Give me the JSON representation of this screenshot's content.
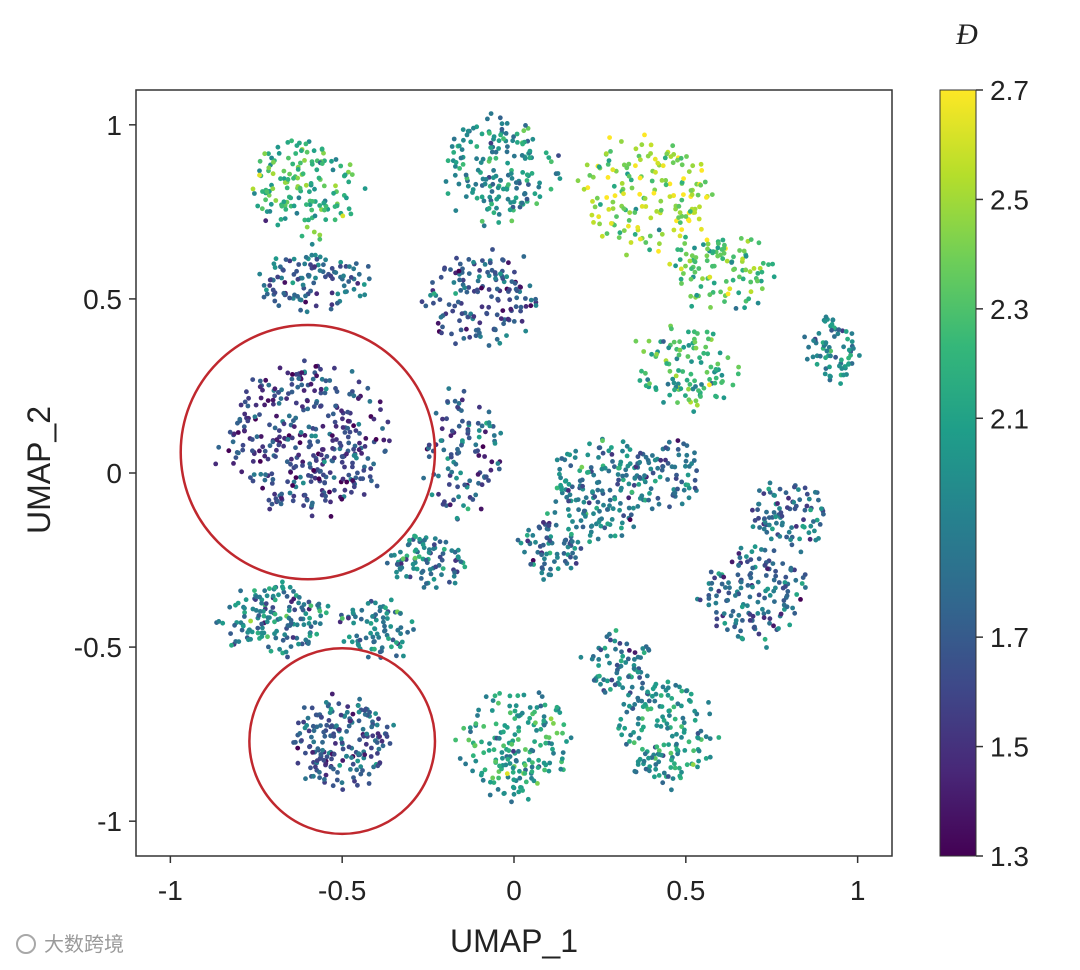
{
  "chart_data": {
    "type": "scatter",
    "title": "",
    "xlabel": "UMAP_1",
    "ylabel": "UMAP_2",
    "xlim": [
      -1.1,
      1.1
    ],
    "ylim": [
      -1.1,
      1.1
    ],
    "xticks": [
      "-1",
      "-0.5",
      "0",
      "0.5",
      "1"
    ],
    "yticks": [
      "1",
      "0.5",
      "0",
      "-0.5",
      "-1"
    ],
    "xtick_values": [
      -1,
      -0.5,
      0,
      0.5,
      1
    ],
    "ytick_values": [
      1,
      0.5,
      0,
      -0.5,
      -1
    ],
    "grid": false,
    "colorbar": {
      "title": "Đ",
      "range": [
        1.3,
        2.7
      ],
      "ticks": [
        "2.7",
        "2.5",
        "2.3",
        "2.1",
        "1.7",
        "1.5",
        "1.3"
      ],
      "tick_values": [
        2.7,
        2.5,
        2.3,
        2.1,
        1.7,
        1.5,
        1.3
      ],
      "colormap": [
        "#440154",
        "#482878",
        "#3e4989",
        "#31688e",
        "#26828e",
        "#1f9e89",
        "#35b779",
        "#6ece58",
        "#b5de2b",
        "#fde725"
      ]
    },
    "clusters": [
      {
        "center": [
          -0.6,
          0.82
        ],
        "spread": [
          0.1,
          0.09
        ],
        "count": 150,
        "value": 2.2
      },
      {
        "center": [
          -0.05,
          0.87
        ],
        "spread": [
          0.1,
          0.09
        ],
        "count": 170,
        "value": 2.0
      },
      {
        "center": [
          0.38,
          0.8
        ],
        "spread": [
          0.12,
          0.1
        ],
        "count": 170,
        "value": 2.45
      },
      {
        "center": [
          -0.58,
          0.55
        ],
        "spread": [
          0.1,
          0.05
        ],
        "count": 110,
        "value": 1.75
      },
      {
        "center": [
          -0.1,
          0.5
        ],
        "spread": [
          0.1,
          0.08
        ],
        "count": 150,
        "value": 1.7
      },
      {
        "center": [
          0.6,
          0.58
        ],
        "spread": [
          0.09,
          0.07
        ],
        "count": 110,
        "value": 2.3
      },
      {
        "center": [
          0.92,
          0.35
        ],
        "spread": [
          0.05,
          0.06
        ],
        "count": 70,
        "value": 2.0
      },
      {
        "center": [
          0.5,
          0.3
        ],
        "spread": [
          0.09,
          0.07
        ],
        "count": 110,
        "value": 2.2
      },
      {
        "center": [
          -0.6,
          0.1
        ],
        "spread": [
          0.14,
          0.13
        ],
        "count": 360,
        "value": 1.6
      },
      {
        "center": [
          -0.15,
          0.05
        ],
        "spread": [
          0.07,
          0.11
        ],
        "count": 110,
        "value": 1.7
      },
      {
        "center": [
          0.25,
          -0.05
        ],
        "spread": [
          0.09,
          0.09
        ],
        "count": 170,
        "value": 1.9
      },
      {
        "center": [
          0.45,
          0.0
        ],
        "spread": [
          0.06,
          0.06
        ],
        "count": 70,
        "value": 1.8
      },
      {
        "center": [
          0.1,
          -0.22
        ],
        "spread": [
          0.06,
          0.05
        ],
        "count": 70,
        "value": 1.8
      },
      {
        "center": [
          0.8,
          -0.12
        ],
        "spread": [
          0.07,
          0.06
        ],
        "count": 90,
        "value": 1.8
      },
      {
        "center": [
          0.7,
          -0.35
        ],
        "spread": [
          0.09,
          0.09
        ],
        "count": 150,
        "value": 1.75
      },
      {
        "center": [
          -0.25,
          -0.25
        ],
        "spread": [
          0.07,
          0.05
        ],
        "count": 90,
        "value": 1.9
      },
      {
        "center": [
          -0.7,
          -0.42
        ],
        "spread": [
          0.1,
          0.06
        ],
        "count": 150,
        "value": 1.9
      },
      {
        "center": [
          -0.4,
          -0.45
        ],
        "spread": [
          0.07,
          0.05
        ],
        "count": 80,
        "value": 1.9
      },
      {
        "center": [
          -0.5,
          -0.77
        ],
        "spread": [
          0.09,
          0.08
        ],
        "count": 190,
        "value": 1.7
      },
      {
        "center": [
          0.0,
          -0.78
        ],
        "spread": [
          0.09,
          0.1
        ],
        "count": 180,
        "value": 2.1
      },
      {
        "center": [
          0.3,
          -0.55
        ],
        "spread": [
          0.06,
          0.06
        ],
        "count": 70,
        "value": 1.9
      },
      {
        "center": [
          0.45,
          -0.75
        ],
        "spread": [
          0.09,
          0.09
        ],
        "count": 160,
        "value": 2.0
      }
    ],
    "annotations": {
      "circles": [
        {
          "center": [
            -0.6,
            0.06
          ],
          "radius": 0.37,
          "color": "#c0282e"
        },
        {
          "center": [
            -0.5,
            -0.77
          ],
          "radius": 0.27,
          "color": "#c0282e"
        }
      ]
    }
  },
  "watermark": "大数跨境"
}
